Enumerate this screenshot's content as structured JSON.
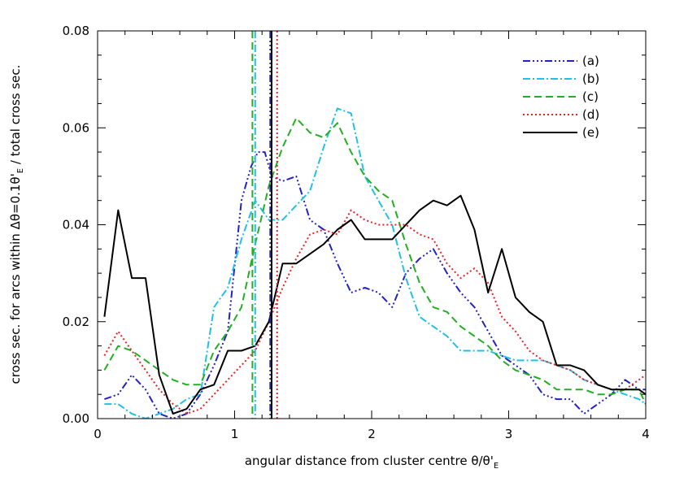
{
  "chart_data": {
    "type": "line",
    "xlabel": "angular distance from cluster centre θ/θ'",
    "xlabel_sub": "E",
    "ylabel_pre": "cross sec. for arcs within Δθ=0.1θ'",
    "ylabel_sub": "E",
    "ylabel_post": " / total cross sec.",
    "xlim": [
      0,
      4
    ],
    "ylim": [
      0,
      0.08
    ],
    "x_ticks": [
      0,
      1,
      2,
      3,
      4
    ],
    "x_tick_labels": [
      "0",
      "1",
      "2",
      "3",
      "4"
    ],
    "y_ticks": [
      0,
      0.02,
      0.04,
      0.06,
      0.08
    ],
    "y_tick_labels": [
      "0.00",
      "0.02",
      "0.04",
      "0.06",
      "0.08"
    ],
    "grid": false,
    "legend_position": "top-right",
    "series": [
      {
        "name": "(a)",
        "color": "#2222c8",
        "dash": "dash-dot-dot-dot",
        "vline": 1.26,
        "x": [
          0.05,
          0.15,
          0.25,
          0.35,
          0.45,
          0.55,
          0.65,
          0.75,
          0.85,
          0.95,
          1.05,
          1.12,
          1.17,
          1.22,
          1.27,
          1.35,
          1.45,
          1.55,
          1.65,
          1.75,
          1.85,
          1.95,
          2.05,
          2.15,
          2.25,
          2.35,
          2.45,
          2.55,
          2.65,
          2.75,
          2.85,
          2.95,
          3.05,
          3.15,
          3.25,
          3.35,
          3.45,
          3.55,
          3.65,
          3.75,
          3.85,
          3.95,
          4.0
        ],
        "y": [
          0.004,
          0.005,
          0.009,
          0.006,
          0.001,
          0.0,
          0.001,
          0.005,
          0.011,
          0.018,
          0.045,
          0.052,
          0.055,
          0.055,
          0.05,
          0.049,
          0.05,
          0.041,
          0.039,
          0.032,
          0.026,
          0.027,
          0.026,
          0.023,
          0.03,
          0.033,
          0.035,
          0.03,
          0.026,
          0.023,
          0.018,
          0.013,
          0.011,
          0.009,
          0.005,
          0.004,
          0.004,
          0.001,
          0.003,
          0.005,
          0.008,
          0.006,
          0.006
        ]
      },
      {
        "name": "(b)",
        "color": "#22c0e8",
        "dash": "dash-dot",
        "vline": 1.15,
        "x": [
          0.05,
          0.15,
          0.25,
          0.35,
          0.45,
          0.55,
          0.65,
          0.75,
          0.85,
          0.95,
          1.05,
          1.15,
          1.25,
          1.35,
          1.45,
          1.55,
          1.65,
          1.75,
          1.85,
          1.95,
          2.05,
          2.15,
          2.25,
          2.35,
          2.45,
          2.55,
          2.65,
          2.75,
          2.85,
          2.95,
          3.05,
          3.15,
          3.25,
          3.35,
          3.45,
          3.55,
          3.65,
          3.75,
          3.85,
          3.95,
          4.0
        ],
        "y": [
          0.003,
          0.003,
          0.001,
          0.0,
          0.001,
          0.002,
          0.004,
          0.005,
          0.023,
          0.027,
          0.037,
          0.045,
          0.041,
          0.041,
          0.044,
          0.047,
          0.056,
          0.064,
          0.063,
          0.05,
          0.045,
          0.04,
          0.029,
          0.021,
          0.019,
          0.017,
          0.014,
          0.014,
          0.014,
          0.013,
          0.012,
          0.012,
          0.012,
          0.011,
          0.01,
          0.008,
          0.007,
          0.006,
          0.005,
          0.004,
          0.003
        ]
      },
      {
        "name": "(c)",
        "color": "#22b022",
        "dash": "dashed",
        "vline": 1.13,
        "x": [
          0.05,
          0.15,
          0.25,
          0.35,
          0.45,
          0.55,
          0.65,
          0.75,
          0.85,
          0.95,
          1.05,
          1.15,
          1.25,
          1.35,
          1.45,
          1.55,
          1.65,
          1.75,
          1.85,
          1.95,
          2.05,
          2.15,
          2.25,
          2.35,
          2.45,
          2.55,
          2.65,
          2.75,
          2.85,
          2.95,
          3.05,
          3.15,
          3.25,
          3.35,
          3.45,
          3.55,
          3.65,
          3.75,
          3.85,
          3.95,
          4.0
        ],
        "y": [
          0.01,
          0.015,
          0.014,
          0.012,
          0.01,
          0.008,
          0.007,
          0.007,
          0.014,
          0.018,
          0.023,
          0.036,
          0.048,
          0.056,
          0.062,
          0.059,
          0.058,
          0.061,
          0.055,
          0.05,
          0.047,
          0.045,
          0.036,
          0.028,
          0.023,
          0.022,
          0.019,
          0.017,
          0.015,
          0.012,
          0.01,
          0.009,
          0.008,
          0.006,
          0.006,
          0.006,
          0.005,
          0.005,
          0.006,
          0.006,
          0.003
        ]
      },
      {
        "name": "(d)",
        "color": "#ee2222",
        "dash": "dotted",
        "vline": 1.31,
        "x": [
          0.05,
          0.15,
          0.25,
          0.35,
          0.45,
          0.55,
          0.65,
          0.75,
          0.85,
          0.95,
          1.05,
          1.15,
          1.25,
          1.35,
          1.45,
          1.55,
          1.65,
          1.75,
          1.85,
          1.95,
          2.05,
          2.15,
          2.25,
          2.35,
          2.45,
          2.55,
          2.65,
          2.75,
          2.85,
          2.95,
          3.05,
          3.15,
          3.25,
          3.35,
          3.45,
          3.55,
          3.65,
          3.75,
          3.85,
          3.95,
          4.0
        ],
        "y": [
          0.013,
          0.018,
          0.014,
          0.01,
          0.006,
          0.003,
          0.001,
          0.002,
          0.005,
          0.008,
          0.011,
          0.014,
          0.02,
          0.027,
          0.033,
          0.038,
          0.039,
          0.038,
          0.043,
          0.041,
          0.04,
          0.04,
          0.04,
          0.038,
          0.037,
          0.032,
          0.029,
          0.031,
          0.028,
          0.021,
          0.018,
          0.014,
          0.012,
          0.011,
          0.01,
          0.008,
          0.007,
          0.006,
          0.006,
          0.008,
          0.009
        ]
      },
      {
        "name": "(e)",
        "color": "#000000",
        "dash": "solid",
        "vline": 1.27,
        "x": [
          0.05,
          0.15,
          0.25,
          0.35,
          0.45,
          0.55,
          0.65,
          0.75,
          0.85,
          0.95,
          1.05,
          1.15,
          1.25,
          1.35,
          1.45,
          1.55,
          1.65,
          1.75,
          1.85,
          1.95,
          2.05,
          2.15,
          2.25,
          2.35,
          2.45,
          2.55,
          2.65,
          2.75,
          2.85,
          2.95,
          3.05,
          3.15,
          3.25,
          3.35,
          3.45,
          3.55,
          3.65,
          3.75,
          3.85,
          3.95,
          4.0
        ],
        "y": [
          0.021,
          0.043,
          0.029,
          0.029,
          0.009,
          0.001,
          0.002,
          0.006,
          0.007,
          0.014,
          0.014,
          0.015,
          0.02,
          0.032,
          0.032,
          0.034,
          0.036,
          0.039,
          0.041,
          0.037,
          0.037,
          0.037,
          0.04,
          0.043,
          0.045,
          0.044,
          0.046,
          0.039,
          0.026,
          0.035,
          0.025,
          0.022,
          0.02,
          0.011,
          0.011,
          0.01,
          0.007,
          0.006,
          0.006,
          0.006,
          0.005
        ]
      }
    ]
  }
}
